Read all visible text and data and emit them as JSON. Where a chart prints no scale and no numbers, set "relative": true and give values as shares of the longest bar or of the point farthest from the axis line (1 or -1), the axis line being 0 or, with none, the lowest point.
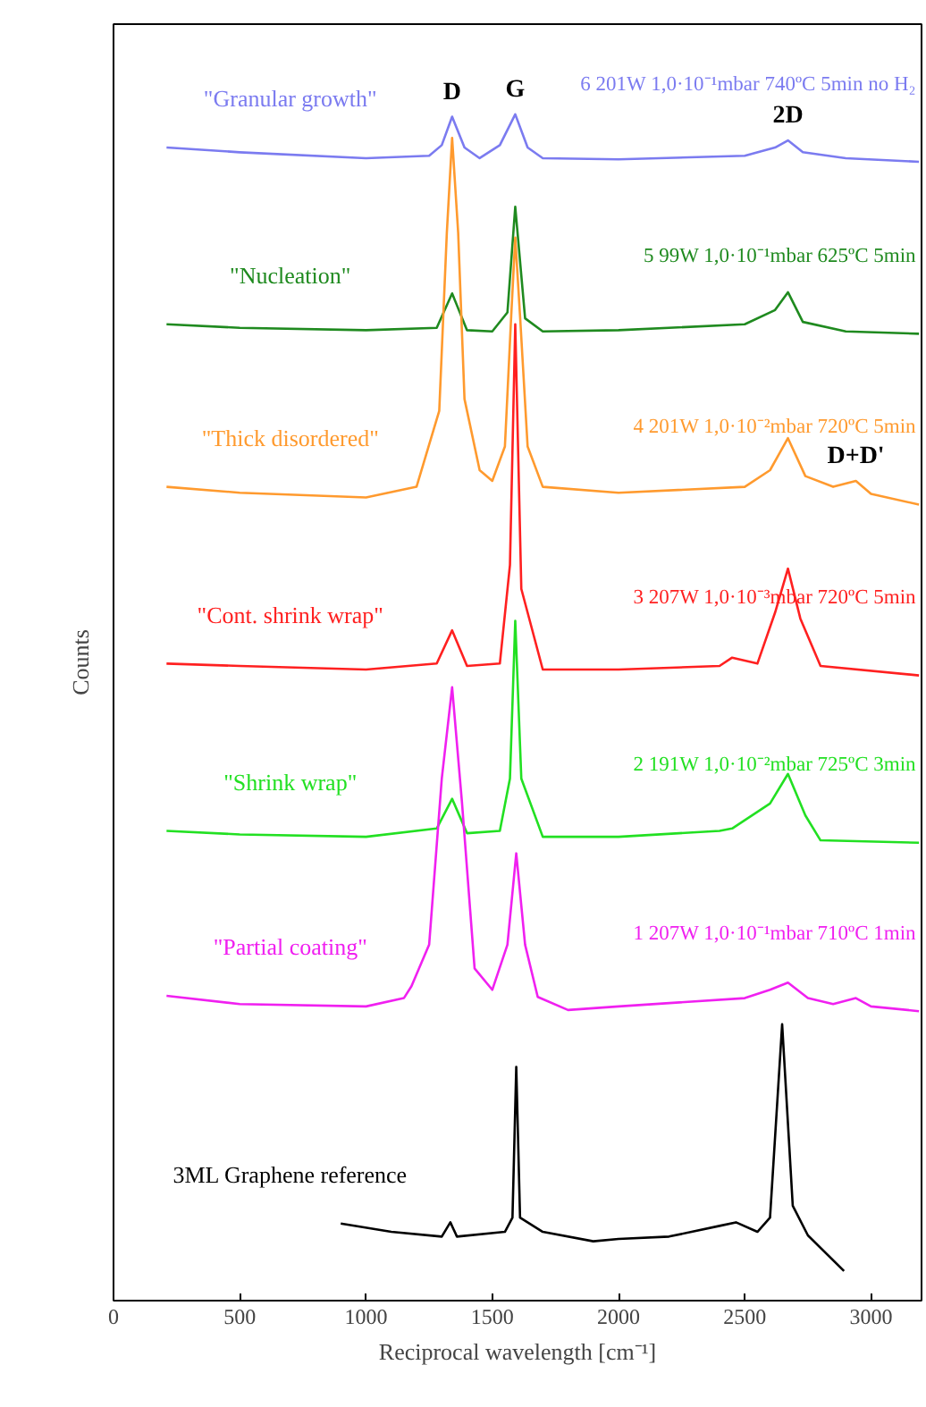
{
  "chart_data": {
    "type": "line",
    "relative": true,
    "xlabel": "Reciprocal wavelength [cm⁻¹]",
    "ylabel": "Counts",
    "xlim": [
      0,
      3200
    ],
    "xticks": [
      0,
      500,
      1000,
      1500,
      2000,
      2500,
      3000
    ],
    "grid": false,
    "legend": false,
    "marker": "none",
    "line_style": "solid",
    "series": [
      {
        "name": "\"Granular growth\"",
        "color": "#7b7bf0",
        "x": [
          210,
          500,
          1000,
          1250,
          1300,
          1341,
          1390,
          1450,
          1530,
          1591,
          1640,
          1700,
          2000,
          2500,
          2620,
          2671,
          2730,
          2900,
          3190
        ],
        "values": [
          0.972,
          0.968,
          0.963,
          0.965,
          0.974,
          0.998,
          0.972,
          0.963,
          0.974,
          1.0,
          0.972,
          0.963,
          0.962,
          0.965,
          0.972,
          0.978,
          0.968,
          0.963,
          0.96
        ]
      },
      {
        "name": "\"Nucleation\"",
        "color": "#1f8a1f",
        "x": [
          210,
          500,
          1000,
          1280,
          1341,
          1400,
          1500,
          1560,
          1591,
          1630,
          1700,
          2000,
          2500,
          2620,
          2671,
          2730,
          2900,
          3190
        ],
        "values": [
          0.823,
          0.82,
          0.818,
          0.82,
          0.849,
          0.818,
          0.817,
          0.833,
          0.922,
          0.828,
          0.817,
          0.818,
          0.823,
          0.835,
          0.85,
          0.825,
          0.817,
          0.815
        ]
      },
      {
        "name": "\"Thick disordered\"",
        "color": "#ff9a2e",
        "x": [
          210,
          500,
          1000,
          1200,
          1290,
          1320,
          1341,
          1365,
          1390,
          1450,
          1500,
          1550,
          1575,
          1591,
          1610,
          1640,
          1700,
          2000,
          2500,
          2600,
          2671,
          2740,
          2850,
          2940,
          3000,
          3190
        ],
        "values": [
          0.686,
          0.681,
          0.677,
          0.686,
          0.75,
          0.9,
          0.98,
          0.9,
          0.76,
          0.7,
          0.691,
          0.72,
          0.83,
          0.896,
          0.83,
          0.72,
          0.686,
          0.681,
          0.686,
          0.7,
          0.727,
          0.695,
          0.686,
          0.691,
          0.68,
          0.671
        ]
      },
      {
        "name": "\"Cont. shrink wrap\"",
        "color": "#ff2020",
        "x": [
          210,
          500,
          1000,
          1280,
          1341,
          1400,
          1530,
          1570,
          1591,
          1615,
          1700,
          2000,
          2400,
          2450,
          2550,
          2620,
          2671,
          2720,
          2800,
          3190
        ],
        "values": [
          0.537,
          0.535,
          0.532,
          0.537,
          0.565,
          0.535,
          0.537,
          0.62,
          0.823,
          0.6,
          0.532,
          0.532,
          0.535,
          0.542,
          0.537,
          0.58,
          0.617,
          0.575,
          0.535,
          0.527
        ]
      },
      {
        "name": "\"Shrink wrap\"",
        "color": "#22e022",
        "x": [
          210,
          500,
          1000,
          1280,
          1341,
          1400,
          1530,
          1570,
          1591,
          1615,
          1700,
          2000,
          2400,
          2450,
          2600,
          2671,
          2740,
          2800,
          3190
        ],
        "values": [
          0.396,
          0.393,
          0.391,
          0.398,
          0.423,
          0.394,
          0.396,
          0.44,
          0.573,
          0.44,
          0.391,
          0.391,
          0.396,
          0.398,
          0.419,
          0.444,
          0.409,
          0.388,
          0.386
        ]
      },
      {
        "name": "\"Partial coating\"",
        "color": "#f020f0",
        "x": [
          210,
          500,
          1000,
          1150,
          1180,
          1250,
          1300,
          1341,
          1380,
          1430,
          1500,
          1560,
          1595,
          1630,
          1680,
          1800,
          2000,
          2500,
          2600,
          2671,
          2750,
          2850,
          2940,
          3000,
          3190
        ],
        "values": [
          0.257,
          0.25,
          0.248,
          0.255,
          0.265,
          0.3,
          0.44,
          0.517,
          0.42,
          0.28,
          0.262,
          0.3,
          0.377,
          0.3,
          0.256,
          0.245,
          0.248,
          0.255,
          0.262,
          0.268,
          0.255,
          0.25,
          0.255,
          0.248,
          0.244
        ]
      },
      {
        "name": "3ML Graphene reference",
        "color": "#000000",
        "x": [
          900,
          1100,
          1300,
          1334,
          1360,
          1550,
          1580,
          1595,
          1610,
          1700,
          1900,
          2000,
          2200,
          2400,
          2465,
          2550,
          2600,
          2648,
          2690,
          2750,
          2893
        ],
        "values": [
          0.065,
          0.058,
          0.054,
          0.066,
          0.054,
          0.058,
          0.07,
          0.197,
          0.07,
          0.058,
          0.05,
          0.052,
          0.054,
          0.063,
          0.066,
          0.058,
          0.07,
          0.233,
          0.08,
          0.055,
          0.025
        ]
      }
    ],
    "annotations": [
      "6 201W 1,0·10⁻¹mbar 740ºC 5min no H₂",
      "5 99W 1,0·10⁻¹mbar 625ºC 5min",
      "4 201W 1,0·10⁻²mbar 720ºC 5min",
      "3 207W 1,0·10⁻³mbar 720ºC 5min",
      "2 191W 1,0·10⁻²mbar 725ºC 3min",
      "1 207W 1,0·10⁻¹mbar 710ºC 1min",
      {
        "text": "D",
        "x": 1341,
        "y": 0.998
      },
      {
        "text": "G",
        "x": 1591,
        "y": 1.0
      },
      {
        "text": "2D",
        "x": 2671,
        "y": 0.978
      },
      {
        "text": "D+D'",
        "x": 2940,
        "y": 0.691
      }
    ]
  }
}
